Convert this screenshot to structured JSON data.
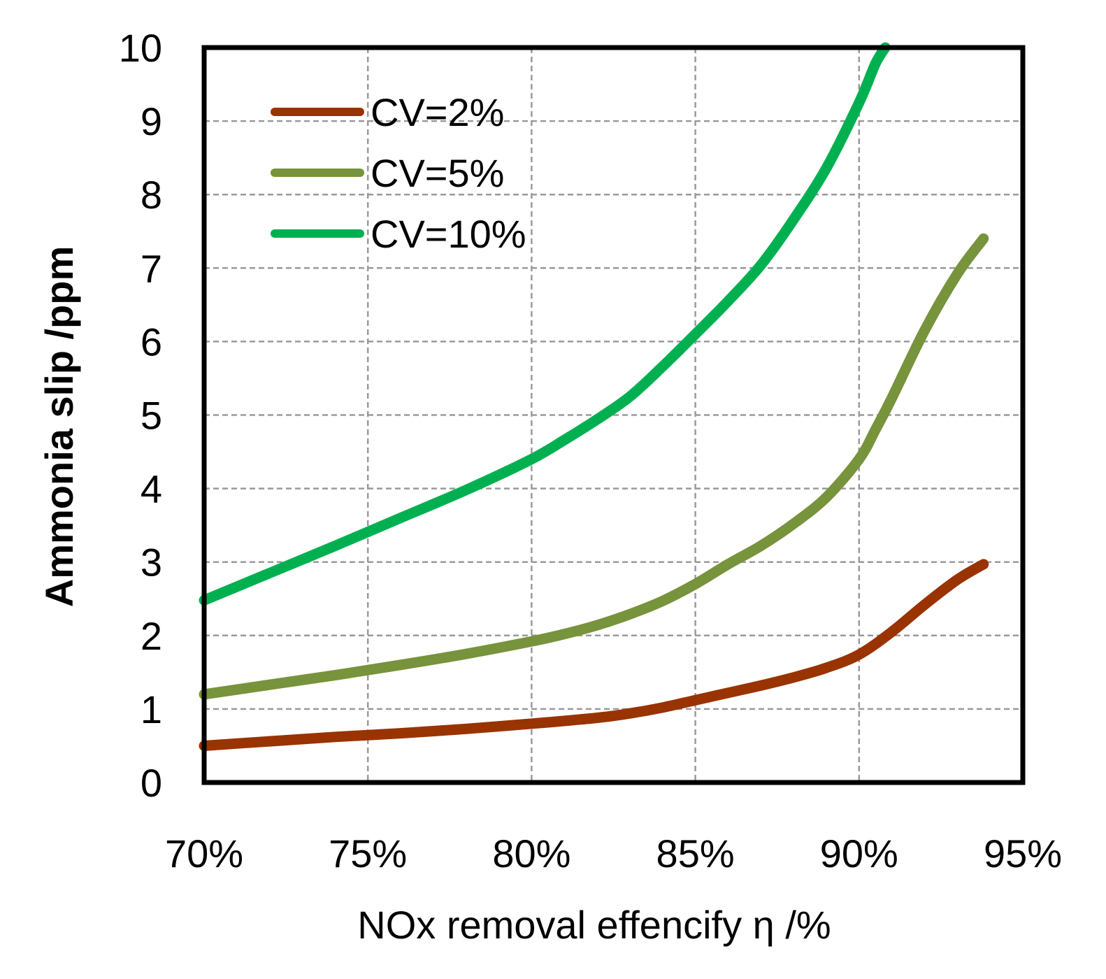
{
  "chart_data": {
    "type": "line",
    "title": "",
    "xlabel": "NOx removal effencify η /%",
    "ylabel": "Ammonia slip /ppm",
    "xlim": [
      70,
      95
    ],
    "ylim": [
      0,
      10
    ],
    "x_ticks": [
      70,
      75,
      80,
      85,
      90,
      95
    ],
    "x_tick_labels": [
      "70%",
      "75%",
      "80%",
      "85%",
      "90%",
      "95%"
    ],
    "y_ticks": [
      0,
      1,
      2,
      3,
      4,
      5,
      6,
      7,
      8,
      9,
      10
    ],
    "y_tick_labels": [
      "0",
      "1",
      "2",
      "3",
      "4",
      "5",
      "6",
      "7",
      "8",
      "9",
      "10"
    ],
    "grid": true,
    "legend_position": "top-left",
    "series": [
      {
        "name": "CV=2%",
        "color": "#993300",
        "x": [
          70,
          72,
          74,
          76,
          78,
          80,
          82,
          83,
          84,
          85,
          86,
          87,
          88,
          89,
          90,
          91,
          92,
          93,
          93.8
        ],
        "y": [
          0.5,
          0.56,
          0.62,
          0.67,
          0.73,
          0.8,
          0.88,
          0.94,
          1.02,
          1.12,
          1.22,
          1.32,
          1.43,
          1.56,
          1.74,
          2.05,
          2.42,
          2.76,
          2.97
        ]
      },
      {
        "name": "CV=5%",
        "color": "#77933C",
        "x": [
          70,
          72,
          74,
          76,
          78,
          80,
          81,
          82,
          83,
          84,
          85,
          86,
          87,
          88,
          89,
          90,
          90.5,
          91,
          92,
          93,
          93.8
        ],
        "y": [
          1.2,
          1.33,
          1.46,
          1.6,
          1.75,
          1.92,
          2.02,
          2.14,
          2.29,
          2.47,
          2.7,
          2.97,
          3.22,
          3.52,
          3.88,
          4.4,
          4.8,
          5.23,
          6.15,
          6.92,
          7.4
        ]
      },
      {
        "name": "CV=10%",
        "color": "#00B050",
        "x": [
          70,
          72,
          74,
          76,
          78,
          80,
          81,
          82,
          83,
          84,
          85,
          86,
          87,
          88,
          89,
          90,
          90.5,
          90.8
        ],
        "y": [
          2.48,
          2.85,
          3.22,
          3.6,
          3.98,
          4.4,
          4.66,
          4.94,
          5.25,
          5.66,
          6.1,
          6.55,
          7.04,
          7.66,
          8.36,
          9.25,
          9.78,
          10.0
        ]
      }
    ]
  }
}
